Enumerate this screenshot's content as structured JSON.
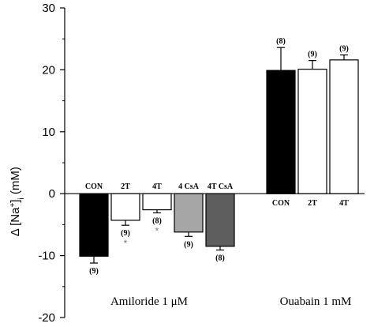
{
  "chart_data": {
    "type": "bar",
    "ylabel": "Δ [Na+]i (mM)",
    "ylabel_parts": {
      "prefix": "Δ [Na",
      "sup": "+",
      "close": "]",
      "sub": "i",
      "unit": " (mM)"
    },
    "ylim": [
      -20,
      30
    ],
    "yticks": [
      -20,
      -10,
      0,
      10,
      20,
      30
    ],
    "grid": false,
    "groups": [
      {
        "label": "Amiloride 1 μM",
        "label_position": "above",
        "bars": [
          {
            "category": "CON",
            "value": -10.1,
            "error": 1.1,
            "n": "(9)",
            "significance": "",
            "color": "#000000"
          },
          {
            "category": "2T",
            "value": -4.3,
            "error": 0.8,
            "n": "(9)",
            "significance": "*",
            "color": "#ffffff"
          },
          {
            "category": "4T",
            "value": -2.6,
            "error": 0.5,
            "n": "(8)",
            "significance": "*",
            "color": "#ffffff"
          },
          {
            "category": "4 CsA",
            "value": -6.2,
            "error": 0.7,
            "n": "(9)",
            "significance": "",
            "color": "#a6a6a6"
          },
          {
            "category": "4T CsA",
            "value": -8.5,
            "error": 0.6,
            "n": "(8)",
            "significance": "",
            "color": "#5e5e5e"
          }
        ]
      },
      {
        "label": "Ouabain 1 mM",
        "label_position": "below",
        "bars": [
          {
            "category": "CON",
            "value": 19.9,
            "error": 3.7,
            "n": "(8)",
            "significance": "",
            "color": "#000000"
          },
          {
            "category": "2T",
            "value": 20.1,
            "error": 1.4,
            "n": "(9)",
            "significance": "",
            "color": "#ffffff"
          },
          {
            "category": "4T",
            "value": 21.6,
            "error": 0.8,
            "n": "(9)",
            "significance": "",
            "color": "#ffffff"
          }
        ]
      }
    ]
  }
}
